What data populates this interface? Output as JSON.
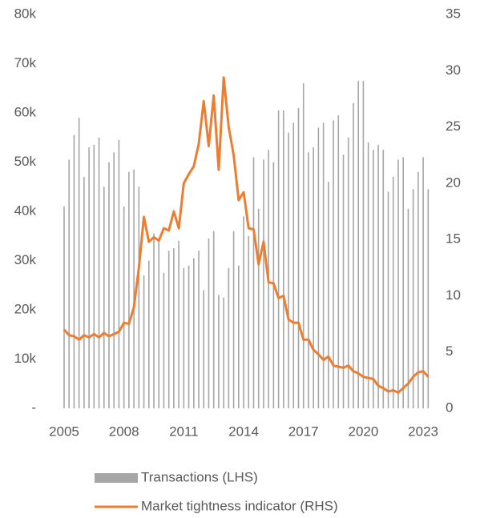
{
  "chart_data": {
    "type": "bar-line",
    "x": [
      2005,
      2005.25,
      2005.5,
      2005.75,
      2006,
      2006.25,
      2006.5,
      2006.75,
      2007,
      2007.25,
      2007.5,
      2007.75,
      2008,
      2008.25,
      2008.5,
      2008.75,
      2009,
      2009.25,
      2009.5,
      2009.75,
      2010,
      2010.25,
      2010.5,
      2010.75,
      2011,
      2011.25,
      2011.5,
      2011.75,
      2012,
      2012.25,
      2012.5,
      2012.75,
      2013,
      2013.25,
      2013.5,
      2013.75,
      2014,
      2014.25,
      2014.5,
      2014.75,
      2015,
      2015.25,
      2015.5,
      2015.75,
      2016,
      2016.25,
      2016.5,
      2016.75,
      2017,
      2017.25,
      2017.5,
      2017.75,
      2018,
      2018.25,
      2018.5,
      2018.75,
      2019,
      2019.25,
      2019.5,
      2019.75,
      2020,
      2020.25,
      2020.5,
      2020.75,
      2021,
      2021.25,
      2021.5,
      2021.75,
      2022,
      2022.25,
      2022.5,
      2022.75,
      2023,
      2023.25
    ],
    "series": [
      {
        "name": "Transactions (LHS)",
        "color": "#a6a6a6",
        "kind": "bar",
        "values": [
          41000,
          50500,
          55500,
          59000,
          47000,
          53000,
          53500,
          55000,
          45000,
          50000,
          52000,
          54500,
          41000,
          48000,
          48500,
          45000,
          27000,
          30000,
          35500,
          34500,
          27500,
          32000,
          32500,
          34000,
          28500,
          29000,
          30500,
          32000,
          24000,
          34500,
          36000,
          23000,
          22500,
          28500,
          36000,
          29000,
          39000,
          35000,
          51000,
          40500,
          50500,
          52500,
          50000,
          60500,
          60500,
          56000,
          58000,
          61000,
          66000,
          52000,
          53000,
          57000,
          58000,
          46000,
          58500,
          59500,
          51500,
          55000,
          62000,
          66500,
          66500,
          54000,
          52500,
          53500,
          52500,
          44000,
          47000,
          50500,
          51000,
          40500,
          44500,
          48000,
          51000,
          44500
        ]
      },
      {
        "name": "Market tightness indicator (RHS)",
        "color": "#ed7d31",
        "kind": "line",
        "axis": "y2",
        "values": [
          7,
          6.5,
          6.4,
          6.1,
          6.5,
          6.3,
          6.6,
          6.3,
          6.7,
          6.4,
          6.6,
          6.8,
          7.6,
          7.5,
          9,
          12.5,
          17,
          14.8,
          15.2,
          14.9,
          16,
          15.8,
          17.5,
          16,
          20,
          20.8,
          21.5,
          23.5,
          27.3,
          23.3,
          27.8,
          21.2,
          29.4,
          25,
          22.5,
          18.5,
          19.2,
          16,
          15.9,
          12.8,
          14.8,
          11.2,
          11.1,
          9.8,
          10,
          7.9,
          7.6,
          7.6,
          6.1,
          6.1,
          5.2,
          4.8,
          4.3,
          4.6,
          3.8,
          3.7,
          3.6,
          3.8,
          3.3,
          3.1,
          2.8,
          2.7,
          2.6,
          2.0,
          1.8,
          1.5,
          1.6,
          1.4,
          1.8,
          2.2,
          2.8,
          3.2,
          3.3,
          2.8
        ]
      }
    ],
    "xlim": [
      2004.8,
      2023.88
    ],
    "xticks": [
      2005,
      2008,
      2011,
      2014,
      2017,
      2020,
      2023
    ],
    "ylim": [
      0,
      80000
    ],
    "yticks": [
      {
        "value": 0,
        "label": "-"
      },
      {
        "value": 10000,
        "label": "10k"
      },
      {
        "value": 20000,
        "label": "20k"
      },
      {
        "value": 30000,
        "label": "30k"
      },
      {
        "value": 40000,
        "label": "40k"
      },
      {
        "value": 50000,
        "label": "50k"
      },
      {
        "value": 60000,
        "label": "60k"
      },
      {
        "value": 70000,
        "label": "70k"
      },
      {
        "value": 80000,
        "label": "80k"
      }
    ],
    "y2lim": [
      0,
      35
    ],
    "y2ticks": [
      0,
      5,
      10,
      15,
      20,
      25,
      30,
      35
    ],
    "legend": "bottom"
  }
}
